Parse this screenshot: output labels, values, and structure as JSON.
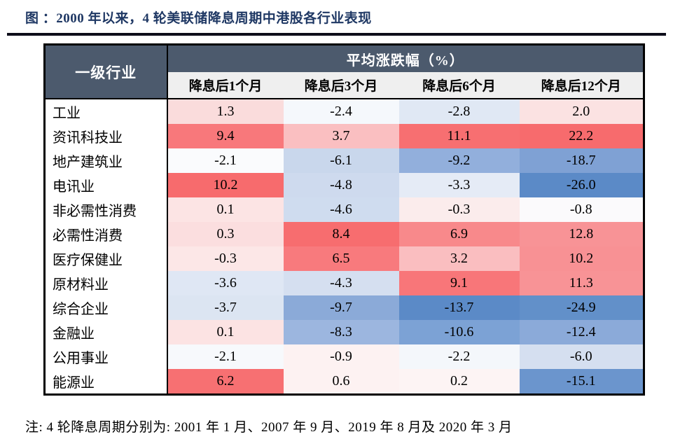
{
  "title": "图  ：2000 年以来，4 轮美联储降息周期中港股各行业表现",
  "note": "注: 4 轮降息周期分别为: 2001 年 1 月、2007 年 9 月、2019 年 8 月及 2020 年 3 月",
  "colors": {
    "title_color": "#1F3864",
    "header_bg": "#4C5A6D",
    "header_text": "#FFFFFF",
    "subheader_bg": "#EFEFEF",
    "table_border": "#000000",
    "scale_max_red": "#F8696B",
    "scale_mid_white": "#FCFCFF",
    "scale_min_blue": "#5A8AC6"
  },
  "chart_data": {
    "type": "heatmap",
    "title": "图 ：2000 年以来，4 轮美联储降息周期中港股各行业表现",
    "row_header": "一级行业",
    "group_header": "平均涨跌幅（%）",
    "columns": [
      "降息后1个月",
      "降息后3个月",
      "降息后6个月",
      "降息后12个月"
    ],
    "legend_position": "none",
    "grid": false,
    "rows": [
      {
        "label": "工业",
        "values": [
          1.3,
          -2.4,
          -2.8,
          2.0
        ],
        "colors": [
          "#FADCDC",
          "#F5F8FC",
          "#E0E8F4",
          "#FBE2E2"
        ]
      },
      {
        "label": "资讯科技业",
        "values": [
          9.4,
          3.7,
          11.1,
          22.2
        ],
        "colors": [
          "#F8787B",
          "#FABFC1",
          "#F76F71",
          "#F76B6D"
        ]
      },
      {
        "label": "地产建筑业",
        "values": [
          -2.1,
          -6.1,
          -9.2,
          -18.7
        ],
        "colors": [
          "#FAFBFD",
          "#C9D7EC",
          "#92AFDC",
          "#7FA1D4"
        ]
      },
      {
        "label": "电讯业",
        "values": [
          10.2,
          -4.8,
          -3.3,
          -26.0
        ],
        "colors": [
          "#F76B6D",
          "#CEDAEE",
          "#E5EBF6",
          "#5B8AC7"
        ]
      },
      {
        "label": "非必需性消费",
        "values": [
          0.1,
          -4.6,
          -0.3,
          -0.8
        ],
        "colors": [
          "#FCE4E4",
          "#CFDCEF",
          "#FBECEC",
          "#FBFAFC"
        ]
      },
      {
        "label": "必需性消费",
        "values": [
          0.3,
          8.4,
          6.9,
          12.8
        ],
        "colors": [
          "#FBDEDF",
          "#F76D6F",
          "#F8898B",
          "#F89396"
        ]
      },
      {
        "label": "医疗保健业",
        "values": [
          -0.3,
          6.5,
          3.2,
          10.2
        ],
        "colors": [
          "#FCE7E7",
          "#F87A7D",
          "#FABEC0",
          "#F89194"
        ]
      },
      {
        "label": "原材料业",
        "values": [
          -3.6,
          -4.3,
          9.1,
          11.3
        ],
        "colors": [
          "#DFE7F4",
          "#D5DFF0",
          "#F87679",
          "#F89396"
        ]
      },
      {
        "label": "综合企业",
        "values": [
          -3.7,
          -9.7,
          -13.7,
          -24.9
        ],
        "colors": [
          "#DCE5F2",
          "#8BAAD8",
          "#5B8AC7",
          "#6290C9"
        ]
      },
      {
        "label": "金融业",
        "values": [
          0.1,
          -8.3,
          -10.6,
          -12.4
        ],
        "colors": [
          "#FCE3E3",
          "#9CB6DF",
          "#7CA2D5",
          "#8BAAD9"
        ]
      },
      {
        "label": "公用事业",
        "values": [
          -2.1,
          -0.9,
          -2.2,
          -6.0
        ],
        "colors": [
          "#F7F9FC",
          "#FDF2F2",
          "#F4F7FB",
          "#D5DFF0"
        ]
      },
      {
        "label": "能源业",
        "values": [
          6.2,
          0.6,
          0.2,
          -15.1
        ],
        "colors": [
          "#F77072",
          "#FDF2F2",
          "#FDF4F4",
          "#6B95CD"
        ]
      }
    ]
  }
}
